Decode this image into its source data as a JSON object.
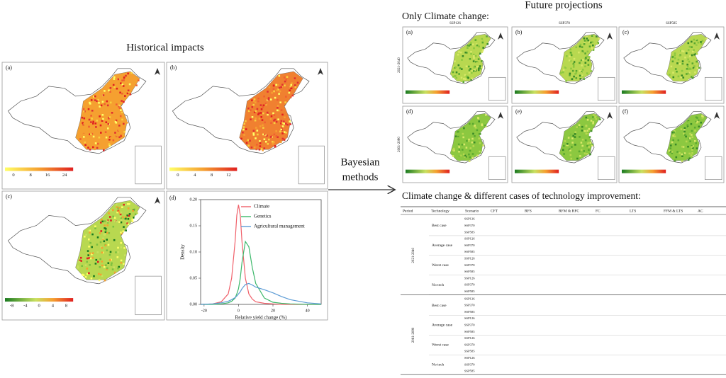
{
  "historical": {
    "title": "Historical impacts",
    "panels": [
      {
        "label": "(a)",
        "legend_ticks": [
          "0",
          "8",
          "16",
          "24"
        ]
      },
      {
        "label": "(b)",
        "legend_ticks": [
          "0",
          "4",
          "8",
          "12"
        ]
      },
      {
        "label": "(c)",
        "legend_ticks": [
          "-8",
          "-4",
          "0",
          "4",
          "8"
        ]
      }
    ]
  },
  "chart_data": {
    "type": "line",
    "label": "(d)",
    "xlabel": "Relative yield change (%)",
    "ylabel": "Density",
    "x": [
      -22,
      -15,
      -10,
      -6,
      -4,
      -2,
      -1,
      0,
      1,
      2,
      4,
      6,
      8,
      10,
      15,
      20,
      25,
      30,
      40,
      48
    ],
    "series": [
      {
        "name": "Climate",
        "color": "#f0606a",
        "values": [
          0,
          0.001,
          0.005,
          0.02,
          0.05,
          0.12,
          0.17,
          0.19,
          0.17,
          0.12,
          0.05,
          0.02,
          0.01,
          0.005,
          0.002,
          0.001,
          0,
          0,
          0,
          0
        ]
      },
      {
        "name": "Genetics",
        "color": "#3cb86a",
        "values": [
          0,
          0,
          0.001,
          0.003,
          0.006,
          0.012,
          0.02,
          0.03,
          0.05,
          0.08,
          0.12,
          0.11,
          0.07,
          0.04,
          0.012,
          0.004,
          0.002,
          0.001,
          0,
          0
        ]
      },
      {
        "name": "Agricultural management",
        "color": "#5b9bd5",
        "values": [
          0,
          0.001,
          0.003,
          0.006,
          0.009,
          0.013,
          0.016,
          0.02,
          0.024,
          0.03,
          0.038,
          0.04,
          0.037,
          0.033,
          0.028,
          0.022,
          0.015,
          0.009,
          0.003,
          0.001
        ]
      }
    ],
    "xlim": [
      -22,
      48
    ],
    "xticks": [
      -20,
      0,
      20,
      40
    ],
    "ylim": [
      0,
      0.2
    ],
    "yticks": [
      {
        "value": 0,
        "label": "0.00"
      },
      0.05,
      {
        "value": 0.1,
        "label": "0.10"
      },
      0.15,
      {
        "value": 0.2,
        "label": "0.20"
      }
    ],
    "legend": "upper right"
  },
  "method": {
    "line1": "Bayesian",
    "line2": "methods"
  },
  "future": {
    "title": "Future projections",
    "subtitle": "Only Climate change:",
    "columns": [
      "SSP126",
      "SSP370",
      "SSP585"
    ],
    "rows": [
      "2021-2040",
      "2061-2080"
    ],
    "panels": [
      "(a)",
      "(b)",
      "(c)",
      "(d)",
      "(e)",
      "(f)"
    ]
  },
  "table": {
    "title": "Climate change & different cases of technology improvement:",
    "header": [
      "Period",
      "Technology",
      "Scenario",
      "CFT",
      "RFS",
      "RFM & RFC",
      "FC",
      "LTS",
      "FFM & LTS",
      "AC"
    ],
    "periods": [
      {
        "label": "2021-2040",
        "groups": [
          {
            "technology": "Best case",
            "scenarios": [
              "SSP126",
              "SSP370",
              "SSP585"
            ]
          },
          {
            "technology": "Average case",
            "scenarios": [
              "SSP126",
              "SSP370",
              "SSP585"
            ]
          },
          {
            "technology": "Worst case",
            "scenarios": [
              "SSP126",
              "SSP370",
              "SSP585"
            ]
          },
          {
            "technology": "No tech",
            "scenarios": [
              "SSP126",
              "SSP370",
              "SSP585"
            ]
          }
        ]
      },
      {
        "label": "2061-2080",
        "groups": [
          {
            "technology": "Best case",
            "scenarios": [
              "SSP126",
              "SSP370",
              "SSP585"
            ]
          },
          {
            "technology": "Average case",
            "scenarios": [
              "SSP126",
              "SSP370",
              "SSP585"
            ]
          },
          {
            "technology": "Worst case",
            "scenarios": [
              "SSP126",
              "SSP370",
              "SSP585"
            ]
          },
          {
            "technology": "No tech",
            "scenarios": [
              "SSP126",
              "SSP370",
              "SSP585"
            ]
          }
        ]
      }
    ]
  }
}
